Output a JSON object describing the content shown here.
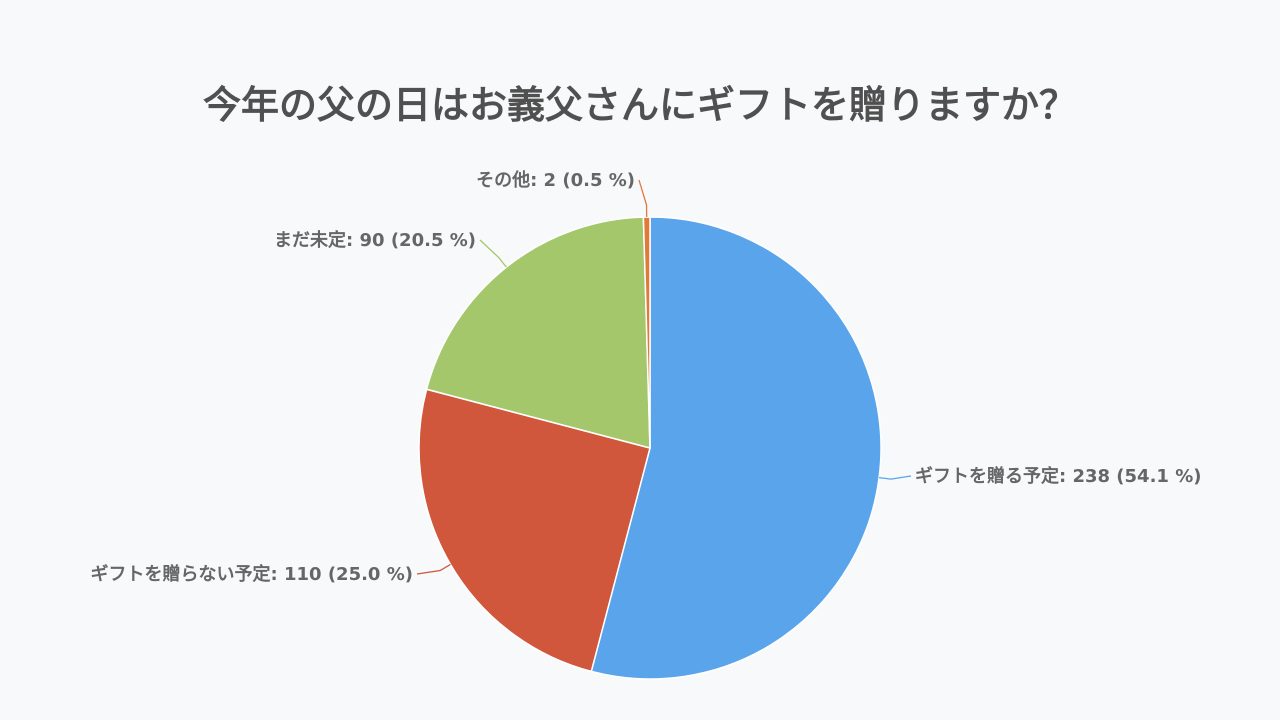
{
  "chart_data": {
    "type": "pie",
    "title": "今年の父の日はお義父さんにギフトを贈りますか？",
    "slices": [
      {
        "label": "ギフトを贈る予定",
        "value": 238,
        "percent": 54.1,
        "color": "#5aa4ec",
        "display": "ギフトを贈る予定: 238 (54.1 %)"
      },
      {
        "label": "ギフトを贈らない予定",
        "value": 110,
        "percent": 25.0,
        "color": "#d0563c",
        "display": "ギフトを贈らない予定: 110 (25.0 %)"
      },
      {
        "label": "まだ未定",
        "value": 90,
        "percent": 20.5,
        "color": "#a5c76b",
        "display": "まだ未定: 90 (20.5 %)"
      },
      {
        "label": "その他",
        "value": 2,
        "percent": 0.5,
        "color": "#e07a3a",
        "display": "その他: 2 (0.5 %)"
      }
    ],
    "start_angle": "top",
    "direction": "clockwise",
    "legend": "none"
  }
}
